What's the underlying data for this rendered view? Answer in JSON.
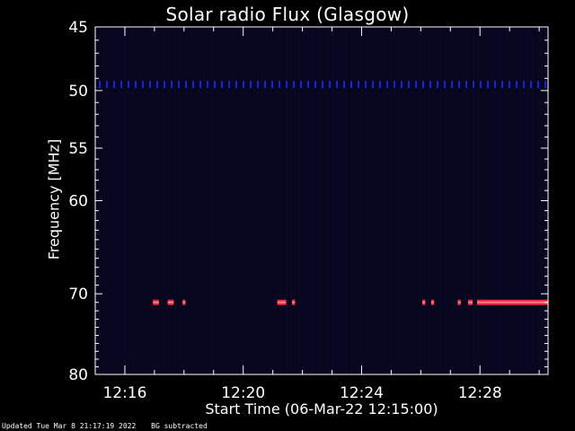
{
  "footer": {
    "updated": "Updated Tue Mar  8 21:17:19 2022",
    "note": "BG subtracted"
  },
  "chart_data": {
    "type": "heatmap",
    "title": "Solar radio Flux (Glasgow)",
    "xlabel": "Start Time (06-Mar-22 12:15:00)",
    "ylabel": "Frequency [MHz]",
    "x_ticks": [
      {
        "minutes": 1,
        "label": "12:16"
      },
      {
        "minutes": 5,
        "label": "12:20"
      },
      {
        "minutes": 9,
        "label": "12:24"
      },
      {
        "minutes": 13,
        "label": "12:28"
      }
    ],
    "xlim_minutes": [
      0,
      15.3
    ],
    "y_ticks": [
      45,
      50,
      55,
      60,
      70,
      80
    ],
    "ylim_mhz": [
      45,
      80
    ],
    "y_scale": "log",
    "colors": {
      "background": "#000000",
      "plot_bg": "#06061e",
      "weak": "#2020d0",
      "strong": "#ff2040",
      "burst_core": "#ff8080"
    },
    "features": [
      {
        "name": "persistent band",
        "freq_mhz": 49.5,
        "intensity": "weak"
      },
      {
        "name": "interference",
        "freq_mhz": 71.0,
        "intensity": "strong",
        "intervals_minutes": [
          [
            1.95,
            2.15
          ],
          [
            2.45,
            2.65
          ],
          [
            2.95,
            3.05
          ],
          [
            6.15,
            6.45
          ],
          [
            6.65,
            6.75
          ],
          [
            11.05,
            11.15
          ],
          [
            11.35,
            11.45
          ],
          [
            12.25,
            12.35
          ],
          [
            12.6,
            12.75
          ],
          [
            12.9,
            15.3
          ]
        ]
      }
    ]
  }
}
